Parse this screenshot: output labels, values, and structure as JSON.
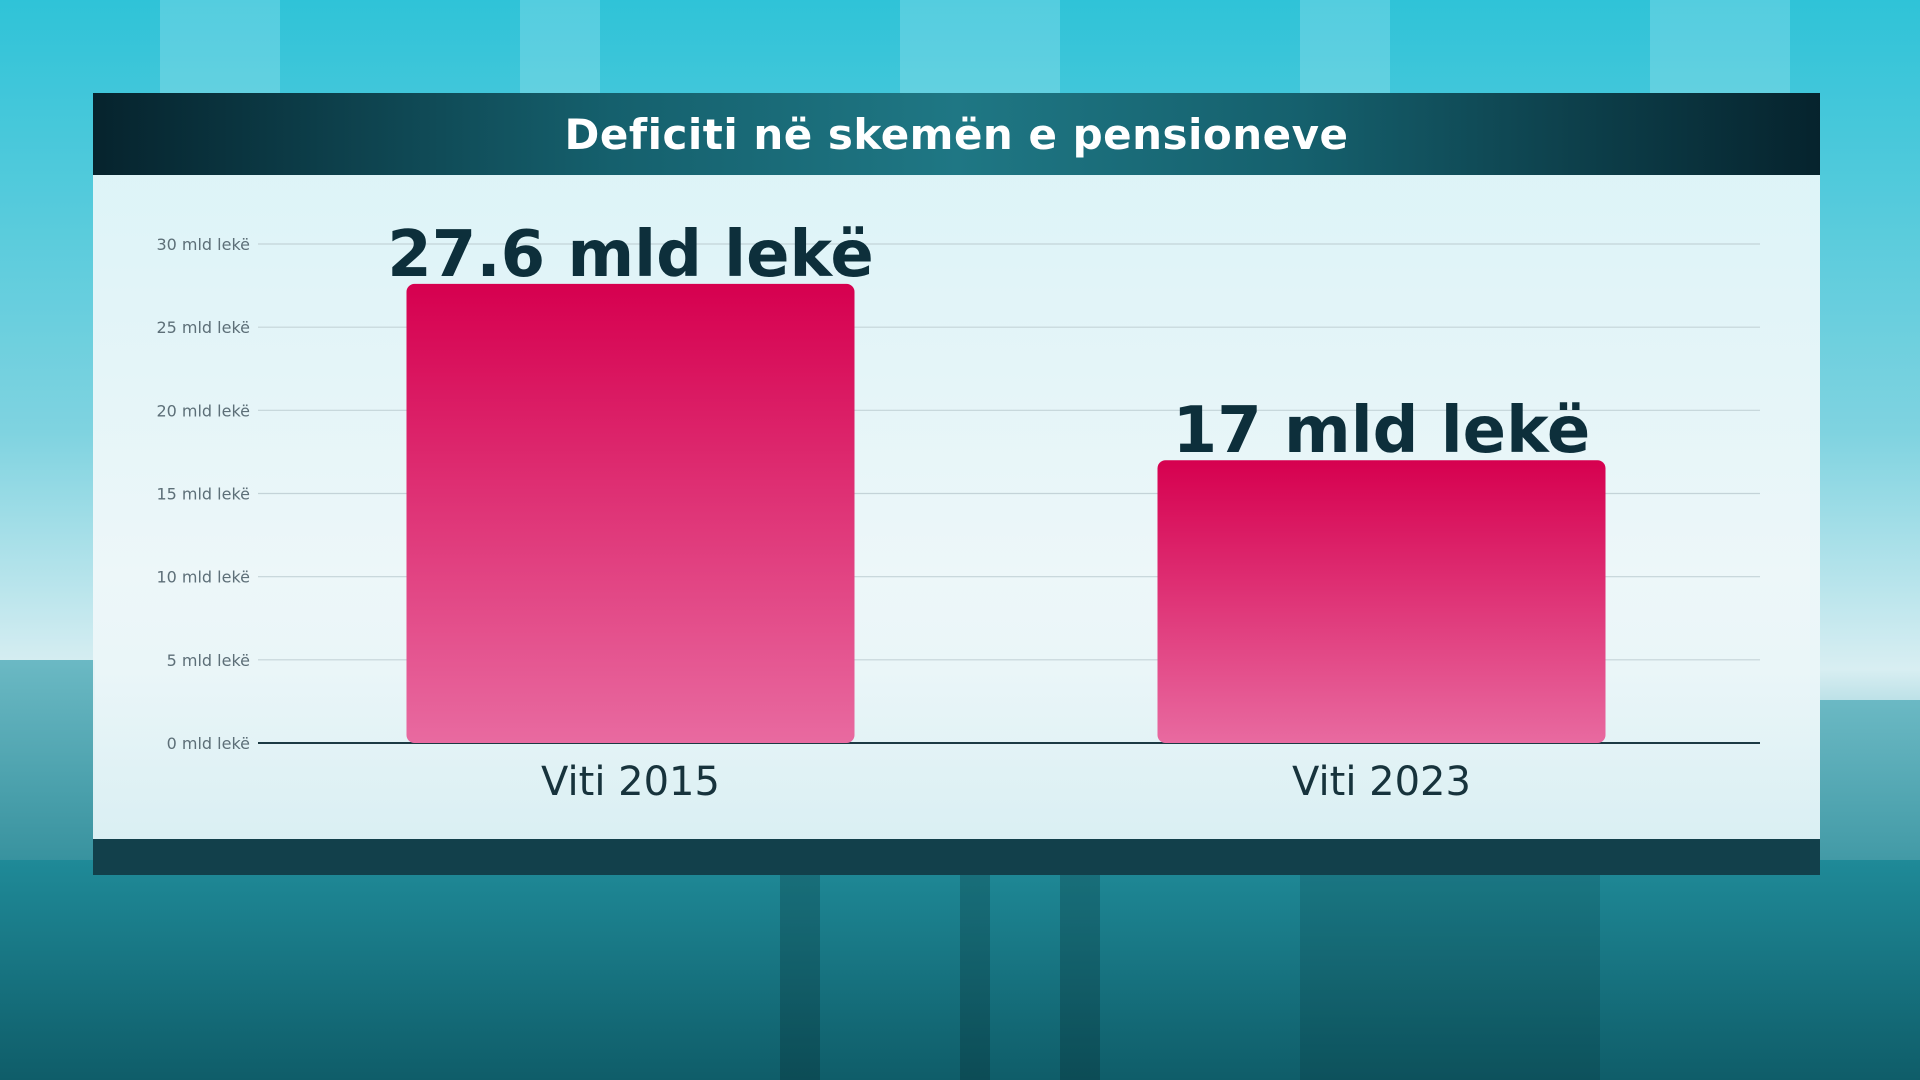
{
  "chart_data": {
    "type": "bar",
    "title": "Deficiti në skemën e pensioneve",
    "categories": [
      "Viti 2015",
      "Viti 2023"
    ],
    "values": [
      27.6,
      17
    ],
    "data_labels": [
      "27.6 mld lekë",
      "17 mld lekë"
    ],
    "yticks": [
      "0 mld lekë",
      "5 mld lekë",
      "10 mld lekë",
      "15 mld lekë",
      "20 mld lekë",
      "25 mld lekë",
      "30 mld lekë"
    ],
    "ytick_values": [
      0,
      5,
      10,
      15,
      20,
      25,
      30
    ],
    "ylim": [
      0,
      30
    ],
    "xlabel": "",
    "ylabel": "",
    "grid": true,
    "legend": "none",
    "colors": {
      "bar_top": "#d6004f",
      "bar_bottom": "#e86aa0",
      "title_bar": "#0b3540",
      "label_text": "#0d2f3b"
    }
  }
}
